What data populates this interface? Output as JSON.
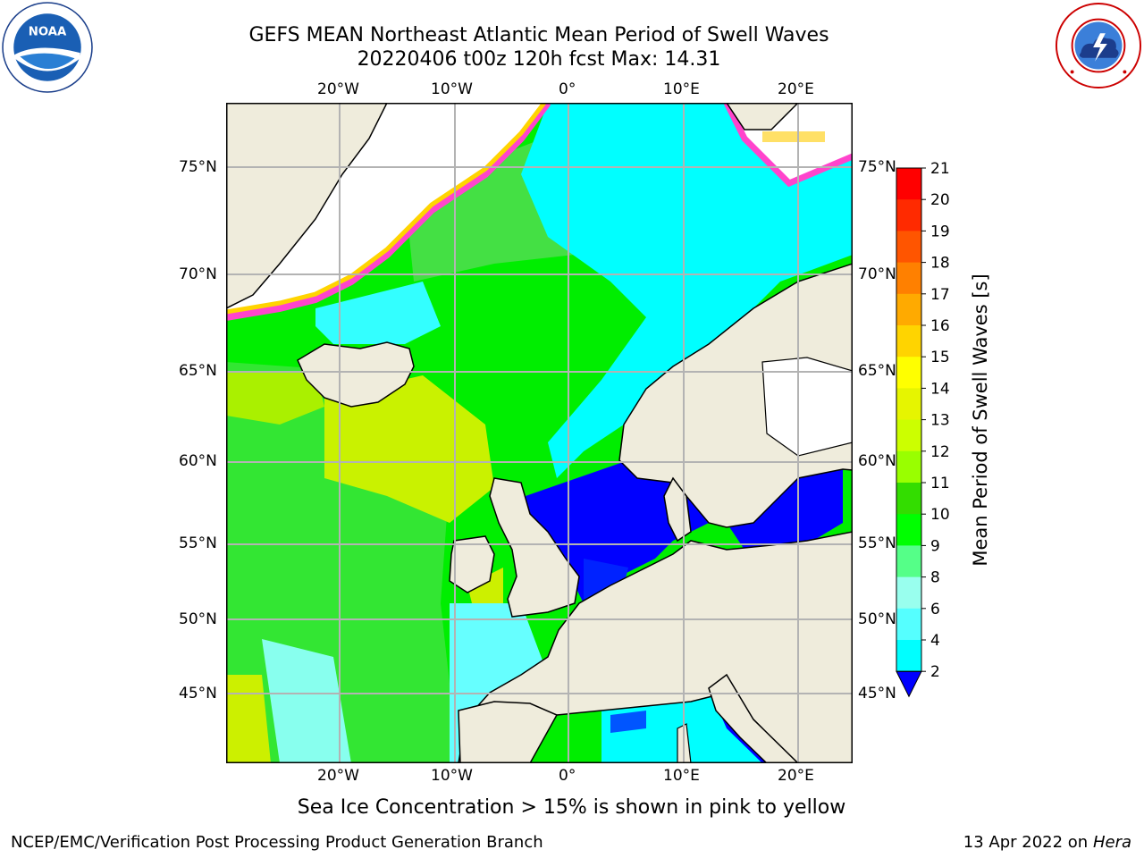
{
  "header": {
    "title_line1": "GEFS MEAN Northeast Atlantic Mean Period of Swell Waves",
    "title_line2": "20220406 t00z 120h fcst   Max: 14.31"
  },
  "logos": {
    "left": "NOAA logo",
    "right": "National Weather Service logo",
    "left_text": "NOAA",
    "left_ring_text": "NATIONAL OCEANIC AND ATMOSPHERIC ADMINISTRATION · U.S. DEPARTMENT OF COMMERCE",
    "right_ring_text": "NATIONAL WEATHER SERVICE"
  },
  "map": {
    "lon_labels": [
      "20°W",
      "10°W",
      "0°",
      "10°E",
      "20°E"
    ],
    "lat_labels": [
      "75°N",
      "70°N",
      "65°N",
      "60°N",
      "55°N",
      "50°N",
      "45°N"
    ],
    "land_color": "#efecdc",
    "grid_color": "#b3b3b3"
  },
  "colorbar": {
    "label": "Mean Period of Swell Waves [s]",
    "ticks": [
      "21",
      "20",
      "19",
      "18",
      "17",
      "16",
      "15",
      "14",
      "13",
      "12",
      "11",
      "10",
      "9",
      "8",
      "6",
      "4",
      "2"
    ],
    "colors": [
      "#ff0000",
      "#ff2a00",
      "#ff5500",
      "#ff8000",
      "#ffaa00",
      "#ffd400",
      "#ffff00",
      "#e6f500",
      "#ccff00",
      "#99ff00",
      "#33dd00",
      "#00ff00",
      "#55ff88",
      "#99ffee",
      "#55ffff",
      "#00ffff",
      "#00ccff",
      "#0066ff",
      "#0000ff"
    ]
  },
  "footnote": "Sea Ice Concentration > 15% is shown in pink to yellow",
  "footer": {
    "left": "NCEP/EMC/Verification Post Processing Product Generation Branch",
    "right_prefix": "13 Apr 2022 on ",
    "right_machine": "Hera"
  }
}
